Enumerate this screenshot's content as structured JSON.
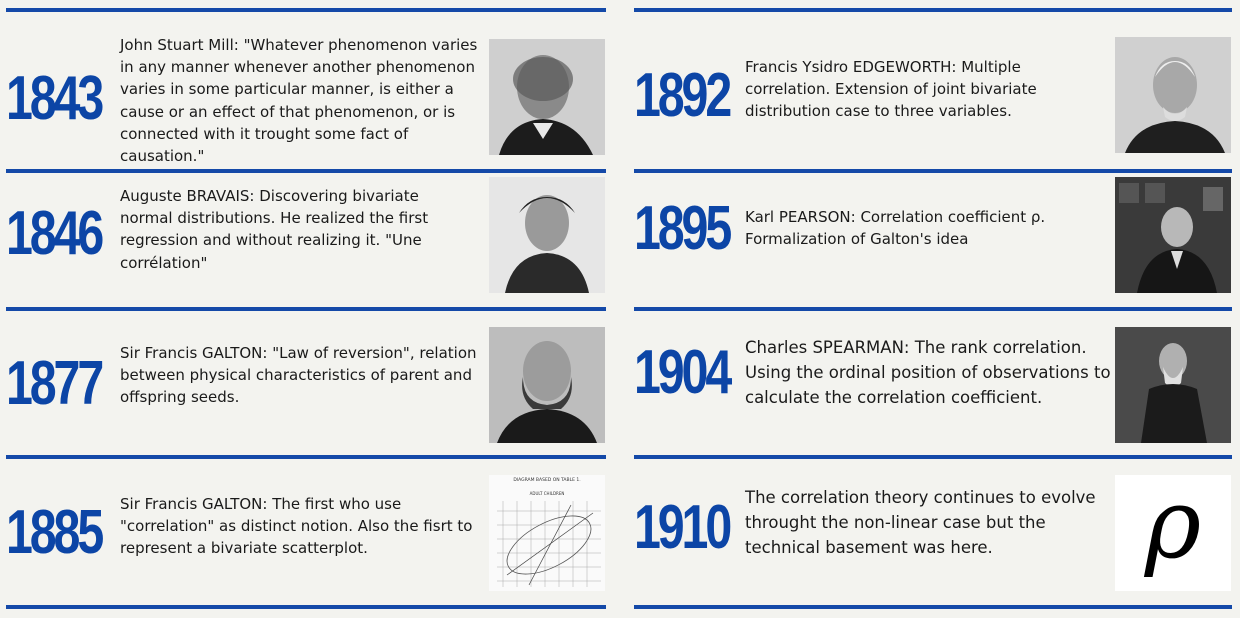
{
  "left_column": [
    {
      "year": "1843",
      "text": "John Stuart Mill: \"Whatever phenomenon varies in any manner whenever another phenomenon varies in some particular manner, is either a cause or an effect of that phenomenon, or is connected with it trought some fact of causation.\""
    },
    {
      "year": "1846",
      "text": "Auguste BRAVAIS:  Discovering bivariate normal distributions. He realized the first regression and without realizing it.  \"Une corrélation\""
    },
    {
      "year": "1877",
      "text": "Sir Francis GALTON: \"Law of reversion\", relation between physical characteristics of parent and offspring seeds."
    },
    {
      "year": "1885",
      "text": "Sir Francis GALTON: The first who use \"correlation\" as distinct notion. Also the fisrt to represent a bivariate scatterplot."
    }
  ],
  "right_column": [
    {
      "year": "1892",
      "text": "Francis Ysidro EDGEWORTH: Multiple correlation. Extension of joint bivariate distribution case to three variables."
    },
    {
      "year": "1895",
      "text": "Karl PEARSON: Correlation coefficient ρ. Formalization of Galton's idea"
    },
    {
      "year": "1904",
      "text": "Charles SPEARMAN: The rank correlation. Using the ordinal position of observations to calculate the correlation coefficient."
    },
    {
      "year": "1910",
      "text": "The correlation theory continues to evolve throught the non-linear case but the technical basement was here."
    }
  ],
  "diagram": {
    "title": "DIAGRAM BASED ON TABLE 1.",
    "subtitle": "ADULT CHILDREN",
    "rho_symbol": "ρ"
  },
  "colors": {
    "accent": "#1449a8",
    "year": "#0c45a6",
    "background": "#f3f3ef"
  }
}
